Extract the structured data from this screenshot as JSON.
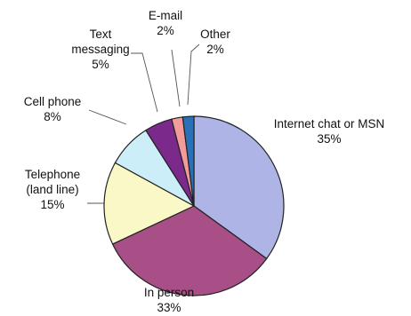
{
  "chart_data": {
    "type": "pie",
    "title": "",
    "slices": [
      {
        "name": "Internet chat or MSN",
        "value": 35,
        "label": "35%",
        "color": "#aeb4e6"
      },
      {
        "name": "In person",
        "value": 33,
        "label": "33%",
        "color": "#a74f86"
      },
      {
        "name": "Telephone (land line)",
        "value": 15,
        "label": "15%",
        "color": "#fbf8c7"
      },
      {
        "name": "Cell phone",
        "value": 8,
        "label": "8%",
        "color": "#cbeef8"
      },
      {
        "name": "Text messaging",
        "value": 5,
        "label": "5%",
        "color": "#7b2a8c"
      },
      {
        "name": "E-mail",
        "value": 2,
        "label": "2%",
        "color": "#f39a9a"
      },
      {
        "name": "Other",
        "value": 2,
        "label": "2%",
        "color": "#2a70b6"
      }
    ],
    "label_text": [
      {
        "lines": [
          "Internet chat or MSN",
          "35%"
        ]
      },
      {
        "lines": [
          "In person",
          "33%"
        ]
      },
      {
        "lines": [
          "Telephone",
          "(land line)",
          "15%"
        ]
      },
      {
        "lines": [
          "Cell phone",
          "8%"
        ]
      },
      {
        "lines": [
          "Text",
          "messaging",
          "5%"
        ]
      },
      {
        "lines": [
          "E-mail",
          "2%"
        ]
      },
      {
        "lines": [
          "Other",
          "2%"
        ]
      }
    ]
  }
}
